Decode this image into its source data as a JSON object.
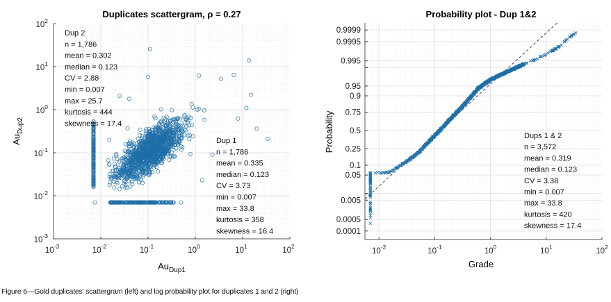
{
  "figure": {
    "caption": "Figure 6—Gold duplicates' scattergram (left) and log probability plot for duplicates 1 and 2 (right)"
  },
  "chart_data": [
    {
      "type": "scatter",
      "title": "Duplicates scattergram, ρ = 0.27",
      "xlabel": "Au_Dup1",
      "ylabel": "Au_Dup2",
      "xscale": "log",
      "yscale": "log",
      "xlim": [
        0.001,
        100
      ],
      "ylim": [
        0.001,
        100
      ],
      "grid": true,
      "marker": "circle",
      "marker_color": "#1f6fa8",
      "x_ticks": [
        "10^-3",
        "10^-2",
        "10^-1",
        "10^0",
        "10^1",
        "10^2"
      ],
      "y_ticks": [
        "10^-3",
        "10^-2",
        "10^-1",
        "10^0",
        "10^1",
        "10^2"
      ],
      "correlation_rho": 0.27,
      "n_points": 1786,
      "distribution_description": "Dense cloud centred near (0.1, 0.1), spread roughly 0.015-2 on both axes; vertical column of points at x = 0.007 (y 0.015-0.6); horizontal row at y = 0.007 (x 0.015-0.5); scattered outliers up to x 33.8 and y 25.7",
      "outliers": [
        {
          "x": 0.11,
          "y": 25.7
        },
        {
          "x": 0.1,
          "y": 5.8
        },
        {
          "x": 13.5,
          "y": 13.8
        },
        {
          "x": 6.5,
          "y": 6.4
        },
        {
          "x": 3.5,
          "y": 5.2
        },
        {
          "x": 1.2,
          "y": 6.2
        },
        {
          "x": 15,
          "y": 2.2
        },
        {
          "x": 12,
          "y": 1.1
        },
        {
          "x": 8,
          "y": 0.62
        },
        {
          "x": 20,
          "y": 0.36
        },
        {
          "x": 33.8,
          "y": 0.21
        },
        {
          "x": 2.3,
          "y": 0.09
        },
        {
          "x": 0.025,
          "y": 2.1
        },
        {
          "x": 0.04,
          "y": 1.8
        },
        {
          "x": 1.4,
          "y": 0.023
        },
        {
          "x": 0.0075,
          "y": 0.007
        },
        {
          "x": 0.5,
          "y": 0.007
        }
      ],
      "stats_boxes": [
        {
          "name": "Dup 2",
          "lines": [
            "Dup 2",
            "n = 1,786",
            "mean = 0.302",
            "median = 0.123",
            "CV = 2.88",
            "min = 0.007",
            "max = 25.7",
            "kurtosis = 444",
            "skewness = 17.4"
          ],
          "placement": "top-left"
        },
        {
          "name": "Dup 1",
          "lines": [
            "Dup 1",
            "n = 1,786",
            "mean = 0.335",
            "median = 0.123",
            "CV = 3.73",
            "min = 0.007",
            "max = 33.8",
            "kurtosis = 358",
            "skewness = 16.4"
          ],
          "placement": "bottom-right"
        }
      ]
    },
    {
      "type": "scatter",
      "title": "Probability plot - Dup 1&2",
      "xlabel": "Grade",
      "ylabel": "Probability",
      "xscale": "log",
      "yscale": "normal-probability",
      "xlim": [
        0.0056,
        100
      ],
      "x_ticks": [
        "10^-2",
        "10^-1",
        "10^0",
        "10^1",
        "10^2"
      ],
      "y_ticks": [
        0.0001,
        0.0005,
        0.005,
        0.05,
        0.1,
        0.25,
        0.5,
        0.75,
        0.9,
        0.95,
        0.995,
        0.9995,
        0.9999
      ],
      "y_tick_labels": [
        "0.0001",
        "0.0005",
        "0.005",
        "0.05",
        "0.1",
        "0.25",
        "0.5",
        "0.75",
        "0.9",
        "0.95",
        "0.995",
        "0.9995",
        "0.9999"
      ],
      "grid": true,
      "marker": "x",
      "marker_color": "#1f6fa8",
      "reference_line": {
        "style": "dashed",
        "color": "#333333",
        "lognormal_median": 0.123,
        "log10_sigma": 0.53
      },
      "n_points": 3572,
      "curve_points": [
        {
          "grade": 0.007,
          "p": 0.0002
        },
        {
          "grade": 0.007,
          "p": 0.06
        },
        {
          "grade": 0.015,
          "p": 0.06
        },
        {
          "grade": 0.03,
          "p": 0.12
        },
        {
          "grade": 0.05,
          "p": 0.2
        },
        {
          "grade": 0.08,
          "p": 0.35
        },
        {
          "grade": 0.123,
          "p": 0.5
        },
        {
          "grade": 0.2,
          "p": 0.68
        },
        {
          "grade": 0.35,
          "p": 0.84
        },
        {
          "grade": 0.6,
          "p": 0.94
        },
        {
          "grade": 1.0,
          "p": 0.97
        },
        {
          "grade": 2.0,
          "p": 0.985
        },
        {
          "grade": 4.0,
          "p": 0.993
        },
        {
          "grade": 7.0,
          "p": 0.996
        },
        {
          "grade": 13,
          "p": 0.9985
        },
        {
          "grade": 17,
          "p": 0.9991
        },
        {
          "grade": 33.8,
          "p": 0.99985
        }
      ],
      "stats_box": {
        "lines": [
          "Dups 1 & 2",
          "n = 3,572",
          "mean = 0.319",
          "median = 0.123",
          "CV = 3.38",
          "min = 0.007",
          "max = 33.8",
          "kurtosis = 420",
          "skewness = 17.4"
        ],
        "placement": "bottom-right"
      }
    }
  ]
}
